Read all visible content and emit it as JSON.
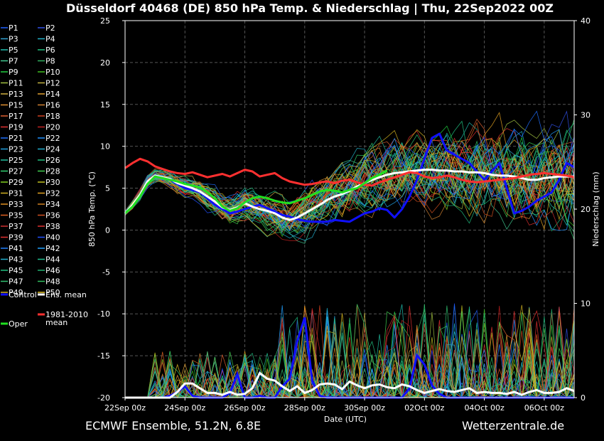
{
  "chart_data": {
    "type": "line",
    "title": "Düsseldorf 40468 (DE)  850 hPa Temp. & Niederschlag | Thu, 22Sep2022 00Z",
    "xlabel": "Date (UTC)",
    "ylabel": "850 hPa Temp. (°C)",
    "y2label": "Niederschlag (mm)",
    "ylim": [
      -20,
      25
    ],
    "y2lim": [
      0,
      40
    ],
    "yticks": [
      25,
      20,
      15,
      10,
      5,
      0,
      -5,
      -10,
      -15,
      -20
    ],
    "y2ticks": [
      40,
      30,
      20,
      10,
      0
    ],
    "xticks": [
      "22Sep 00z",
      "24Sep 00z",
      "26Sep 00z",
      "28Sep 00z",
      "30Sep 00z",
      "02Oct 00z",
      "04Oct 00z",
      "06Oct 00z"
    ],
    "x_days": [
      0,
      0.25,
      0.5,
      0.75,
      1,
      1.25,
      1.5,
      1.75,
      2,
      2.25,
      2.5,
      2.75,
      3,
      3.25,
      3.5,
      3.75,
      4,
      4.25,
      4.5,
      4.75,
      5,
      5.25,
      5.5,
      5.75,
      6,
      6.25,
      6.5,
      6.75,
      7,
      7.25,
      7.5,
      7.75,
      8,
      8.25,
      8.5,
      8.75,
      9,
      9.25,
      9.5,
      9.75,
      10,
      10.25,
      10.5,
      10.75,
      11,
      11.25,
      11.5,
      11.75,
      12,
      12.25,
      12.5,
      12.75,
      13,
      13.25,
      13.5,
      13.75,
      14,
      14.25,
      14.5,
      14.75,
      15
    ],
    "grid": true,
    "legend_position": "left",
    "series": [
      {
        "name": "Control",
        "color": "#1010ff",
        "width": 3,
        "values": [
          2,
          3,
          4,
          5.5,
          6.5,
          6.3,
          6,
          5.5,
          5,
          4.8,
          4.5,
          3.8,
          3,
          2.5,
          2,
          2.2,
          2.5,
          2.8,
          3,
          2.6,
          2.2,
          1.8,
          1.6,
          1.3,
          1.1,
          1,
          1,
          1,
          1.2,
          1.1,
          1,
          1.5,
          2,
          2.2,
          2.6,
          2.4,
          1.5,
          2.5,
          4,
          6,
          8.5,
          11,
          11.5,
          9.5,
          9,
          8.5,
          8,
          7,
          6,
          7,
          8,
          5,
          2,
          2.3,
          2.8,
          3.5,
          4,
          4.5,
          6,
          8,
          7.5
        ]
      },
      {
        "name": "Ens. mean",
        "color": "#ffffff",
        "width": 3,
        "values": [
          2,
          3,
          4.2,
          5.8,
          6.5,
          6.3,
          6.1,
          5.6,
          5.3,
          5,
          4.6,
          4,
          3.4,
          2.7,
          2.4,
          2.7,
          3.2,
          2.8,
          2.5,
          2.3,
          2,
          1.5,
          1.2,
          1.5,
          2,
          2.5,
          3,
          3.6,
          4,
          4.3,
          4.7,
          5.2,
          5.6,
          6,
          6.3,
          6.6,
          6.8,
          6.9,
          7,
          7.1,
          7.2,
          7.2,
          7.1,
          7.1,
          7,
          7,
          6.9,
          6.9,
          6.8,
          6.6,
          6.5,
          6.5,
          6.4,
          6.2,
          6,
          6,
          6.2,
          6.3,
          6.4,
          6.4,
          6.4
        ]
      },
      {
        "name": "1981-2010 mean",
        "color": "#ff3030",
        "width": 3,
        "values": [
          7.4,
          8,
          8.5,
          8.2,
          7.6,
          7.3,
          7,
          6.8,
          6.7,
          6.9,
          6.6,
          6.3,
          6.5,
          6.7,
          6.4,
          6.8,
          7.2,
          7,
          6.4,
          6.6,
          6.8,
          6.2,
          5.8,
          5.6,
          5.4,
          5.5,
          5.7,
          5.8,
          5.6,
          5.9,
          6,
          5.7,
          5.4,
          5.3,
          5.7,
          6,
          6.3,
          6.6,
          6.9,
          6.8,
          6.4,
          6.2,
          6.3,
          6.5,
          6.3,
          6,
          5.8,
          5.7,
          5.8,
          5.9,
          6,
          6.1,
          6.2,
          6.4,
          6.6,
          6.7,
          6.8,
          6.7,
          6.6,
          6.5,
          6.3
        ]
      },
      {
        "name": "Oper",
        "color": "#20e020",
        "width": 3,
        "values": [
          2,
          2.8,
          4,
          5.5,
          6.4,
          6.2,
          6,
          5.8,
          5.5,
          5.3,
          5.1,
          4.5,
          3.8,
          2.8,
          2.3,
          2.6,
          3.3,
          3.8,
          4,
          3.8,
          3.5,
          3.3,
          3.2,
          3.5,
          3.8,
          4.2,
          4.6,
          4.8,
          4.7,
          4.5,
          4.8,
          5,
          5.6,
          6.2,
          6.6,
          7.1
        ]
      }
    ],
    "precip_series": [
      {
        "name": "Control",
        "color": "#1010ff",
        "values": [
          0,
          0,
          0,
          0,
          0,
          0,
          0.2,
          0.6,
          1.2,
          0.2,
          0,
          0,
          0,
          0,
          0.5,
          2.5,
          0,
          0,
          0.2,
          0,
          0,
          1.2,
          2,
          6,
          8.5,
          1.8,
          0.2,
          0,
          0,
          0,
          0,
          0,
          0,
          0,
          0,
          0,
          0,
          0,
          1,
          4.5,
          3.5,
          1.3,
          0.4,
          0,
          0,
          0,
          0,
          0,
          0,
          0,
          0,
          0,
          0,
          0,
          0,
          0,
          0,
          0,
          0,
          0,
          0
        ]
      },
      {
        "name": "Ens. mean",
        "color": "#ffffff",
        "values": [
          0,
          0,
          0,
          0,
          0,
          0,
          0,
          0.6,
          1.5,
          1.5,
          1,
          0.5,
          0.5,
          0.3,
          0.6,
          0.3,
          0.4,
          1,
          2.6,
          2,
          1.8,
          1.2,
          0.7,
          1.2,
          0.5,
          0.8,
          1.4,
          1.5,
          1.4,
          0.9,
          1.7,
          1.3,
          1,
          1.3,
          1.4,
          1.1,
          1,
          1.4,
          1.2,
          0.8,
          0.5,
          0.7,
          0.9,
          0.7,
          0.6,
          0.8,
          1,
          0.5,
          0.6,
          0.5,
          0.5,
          0.4,
          0.6,
          0.3,
          0.6,
          0.8,
          0.5,
          0.5,
          0.6,
          1,
          0.7
        ]
      }
    ],
    "member_labels": [
      "P1",
      "P2",
      "P3",
      "P4",
      "P5",
      "P6",
      "P7",
      "P8",
      "P9",
      "P10",
      "P11",
      "P12",
      "P13",
      "P14",
      "P15",
      "P16",
      "P17",
      "P18",
      "P19",
      "P20",
      "P21",
      "P22",
      "P23",
      "P24",
      "P25",
      "P26",
      "P27",
      "P28",
      "P29",
      "P30",
      "P31",
      "P32",
      "P33",
      "P34",
      "P35",
      "P36",
      "P37",
      "P38",
      "P39",
      "P40",
      "P41",
      "P42",
      "P43",
      "P44",
      "P45",
      "P46",
      "P47",
      "P48",
      "P49",
      "P50"
    ],
    "member_colors": [
      "#2060ff",
      "#3050e8",
      "#30a0d0",
      "#20b0c8",
      "#20c0b0",
      "#20c080",
      "#40c890",
      "#30b060",
      "#20d040",
      "#40c020",
      "#a0c040",
      "#c0b040",
      "#d0b040",
      "#e0a030",
      "#e09030",
      "#d08030",
      "#e06030",
      "#d04020",
      "#e03030",
      "#c02020",
      "#2070ff",
      "#2090ff",
      "#20a0e0",
      "#20b0d0",
      "#20c0a0",
      "#20c080",
      "#30d070",
      "#40d050",
      "#80d020",
      "#c0c020",
      "#d0b020",
      "#e0a020",
      "#e09020",
      "#d08020",
      "#e06020",
      "#d05020",
      "#d03030",
      "#e03030",
      "#e03030",
      "#2050ff",
      "#2080ff",
      "#20a0ff",
      "#20b0d0",
      "#20c090",
      "#20c080",
      "#20b070",
      "#30c070",
      "#30c060",
      "#d0b020",
      "#e0c020"
    ],
    "source_note": "ECMWF Ensemble, 51.2N, 6.8E",
    "brand": "Wetterzentrale.de"
  },
  "legend": {
    "control_label": "Control",
    "mean_label": "Ens. mean",
    "clim_label_line1": "1981-2010",
    "clim_label_line2": "mean",
    "oper_label": "Oper"
  }
}
